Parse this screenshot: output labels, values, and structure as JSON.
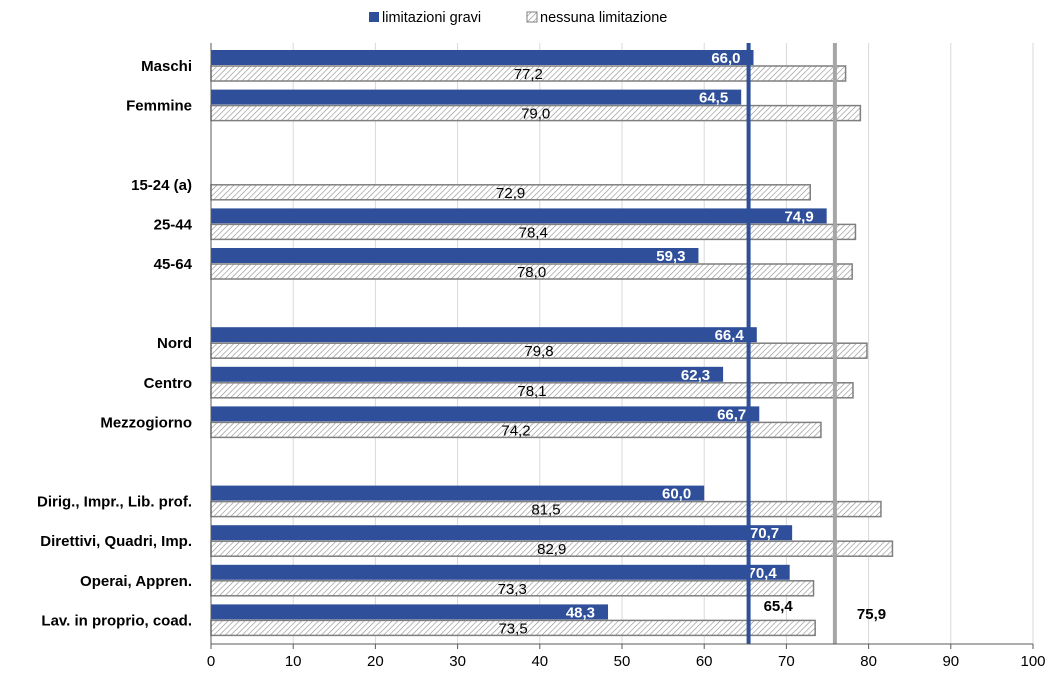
{
  "chart_data": {
    "type": "bar",
    "orientation": "horizontal",
    "legend_position": "top-center",
    "grid": "vertical",
    "xlim": [
      0,
      100
    ],
    "xticks": [
      0,
      10,
      20,
      30,
      40,
      50,
      60,
      70,
      80,
      90,
      100
    ],
    "categories": [
      "Maschi",
      "Femmine",
      "",
      "15-24 (a)",
      "25-44",
      "45-64",
      "",
      "Nord",
      "Centro",
      "Mezzogiorno",
      "",
      "Dirig., Impr., Lib. prof.",
      "Direttivi, Quadri, Imp.",
      "Operai, Appren.",
      "Lav. in proprio, coad."
    ],
    "series": [
      {
        "name": "limitazioni gravi",
        "color": "#2F4F9A",
        "fill": "solid",
        "values": [
          66.0,
          64.5,
          null,
          null,
          74.9,
          59.3,
          null,
          66.4,
          62.3,
          66.7,
          null,
          60.0,
          70.7,
          70.4,
          48.3
        ],
        "labels": [
          "66,0",
          "64,5",
          "",
          "",
          "74,9",
          "59,3",
          "",
          "66,4",
          "62,3",
          "66,7",
          "",
          "60,0",
          "70,7",
          "70,4",
          "48,3"
        ]
      },
      {
        "name": "nessuna limitazione",
        "color": "#7f7f7f",
        "fill": "hatched",
        "values": [
          77.2,
          79.0,
          null,
          72.9,
          78.4,
          78.0,
          null,
          79.8,
          78.1,
          74.2,
          null,
          81.5,
          82.9,
          73.3,
          73.5
        ],
        "labels": [
          "77,2",
          "79,0",
          "",
          "72,9",
          "78,4",
          "78,0",
          "",
          "79,8",
          "78,1",
          "74,2",
          "",
          "81,5",
          "82,9",
          "73,3",
          "73,5"
        ]
      }
    ],
    "reference_lines": [
      {
        "value": 65.4,
        "label": "65,4",
        "color": "#2F4F9A"
      },
      {
        "value": 75.9,
        "label": "75,9",
        "color": "#a6a6a6"
      }
    ]
  }
}
